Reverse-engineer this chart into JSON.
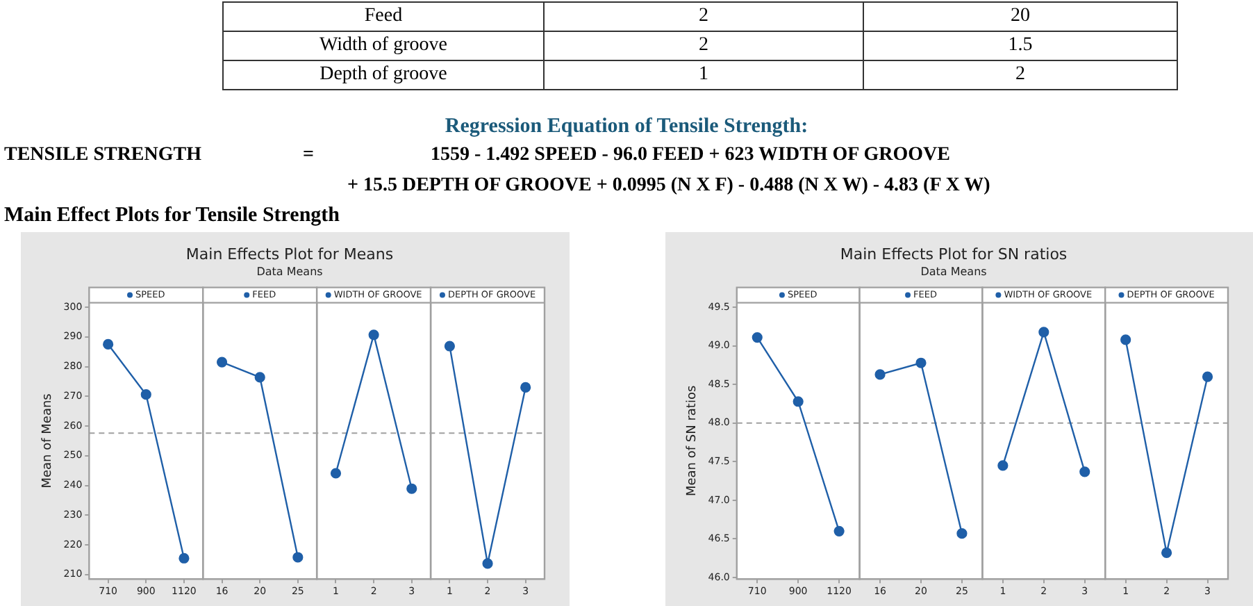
{
  "chart_data": [
    {
      "type": "line",
      "title": "Main Effects Plot for Means",
      "subtitle": "Data Means",
      "ylabel": "Mean of Means",
      "categories": [
        "710",
        "900",
        "1120",
        "16",
        "20",
        "25",
        "1",
        "2",
        "3",
        "1",
        "2",
        "3"
      ],
      "series": [
        {
          "name": "SPEED",
          "color": "#1f5fa8",
          "values": [
            287.5,
            270.6,
            215.5,
            null,
            null,
            null,
            null,
            null,
            null,
            null,
            null,
            null
          ]
        },
        {
          "name": "FEED",
          "color": "#1f5fa8",
          "values": [
            null,
            null,
            null,
            281.5,
            276.4,
            215.8,
            null,
            null,
            null,
            null,
            null,
            null
          ]
        },
        {
          "name": "WIDTH OF GROOVE",
          "color": "#1f5fa8",
          "values": [
            null,
            null,
            null,
            null,
            null,
            null,
            244.1,
            290.7,
            238.9,
            null,
            null,
            null
          ]
        },
        {
          "name": "DEPTH OF GROOVE",
          "color": "#1f5fa8",
          "values": [
            null,
            null,
            null,
            null,
            null,
            null,
            null,
            null,
            null,
            286.9,
            213.7,
            273.0
          ]
        }
      ],
      "ylim": [
        208.5,
        301.5
      ],
      "yticks": [
        210,
        220,
        230,
        240,
        250,
        260,
        270,
        280,
        290,
        300
      ],
      "ref_lines": [
        {
          "axis": "y",
          "value": 257.6,
          "color": "#a0a0a0",
          "line_style": "dashed"
        }
      ],
      "marker": "circle",
      "grid": false,
      "legend": "top",
      "annotations": [
        "Feed",
        "2",
        "20",
        "Width of groove",
        "2",
        "1.5",
        "Depth of groove",
        "1",
        "2",
        "Regression Equation of Tensile Strength:",
        "TENSILE STRENGTH",
        "=",
        "1559 - 1.492 SPEED - 96.0 FEED + 623 WIDTH OF GROOVE",
        "+ 15.5 DEPTH OF GROOVE + 0.0995 (N X F) - 0.488 (N X W) - 4.83 (F X W)",
        "Main Effect Plots for Tensile Strength"
      ]
    },
    {
      "type": "line",
      "title": "Main Effects Plot for SN ratios",
      "subtitle": "Data Means",
      "ylabel": "Mean of SN ratios",
      "categories": [
        "710",
        "900",
        "1120",
        "16",
        "20",
        "25",
        "1",
        "2",
        "3",
        "1",
        "2",
        "3"
      ],
      "series": [
        {
          "name": "SPEED",
          "color": "#1f5fa8",
          "values": [
            49.11,
            48.28,
            46.6,
            null,
            null,
            null,
            null,
            null,
            null,
            null,
            null,
            null
          ]
        },
        {
          "name": "FEED",
          "color": "#1f5fa8",
          "values": [
            null,
            null,
            null,
            48.63,
            48.78,
            46.57,
            null,
            null,
            null,
            null,
            null,
            null
          ]
        },
        {
          "name": "WIDTH OF GROOVE",
          "color": "#1f5fa8",
          "values": [
            null,
            null,
            null,
            null,
            null,
            null,
            47.45,
            49.18,
            47.37,
            null,
            null,
            null
          ]
        },
        {
          "name": "DEPTH OF GROOVE",
          "color": "#1f5fa8",
          "values": [
            null,
            null,
            null,
            null,
            null,
            null,
            null,
            null,
            null,
            49.08,
            46.32,
            48.6
          ]
        }
      ],
      "ylim": [
        45.98,
        49.56
      ],
      "yticks": [
        {
          "value": 46,
          "label": "46.0"
        },
        {
          "value": 46.5,
          "label": "46.5"
        },
        {
          "value": 47,
          "label": "47.0"
        },
        {
          "value": 47.5,
          "label": "47.5"
        },
        {
          "value": 48,
          "label": "48.0"
        },
        {
          "value": 48.5,
          "label": "48.5"
        },
        {
          "value": 49,
          "label": "49.0"
        },
        {
          "value": 49.5,
          "label": "49.5"
        }
      ],
      "ref_lines": [
        {
          "axis": "y",
          "value": 48.0,
          "color": "#a0a0a0",
          "line_style": "dashed"
        }
      ],
      "marker": "circle",
      "grid": false,
      "legend": "top"
    }
  ]
}
